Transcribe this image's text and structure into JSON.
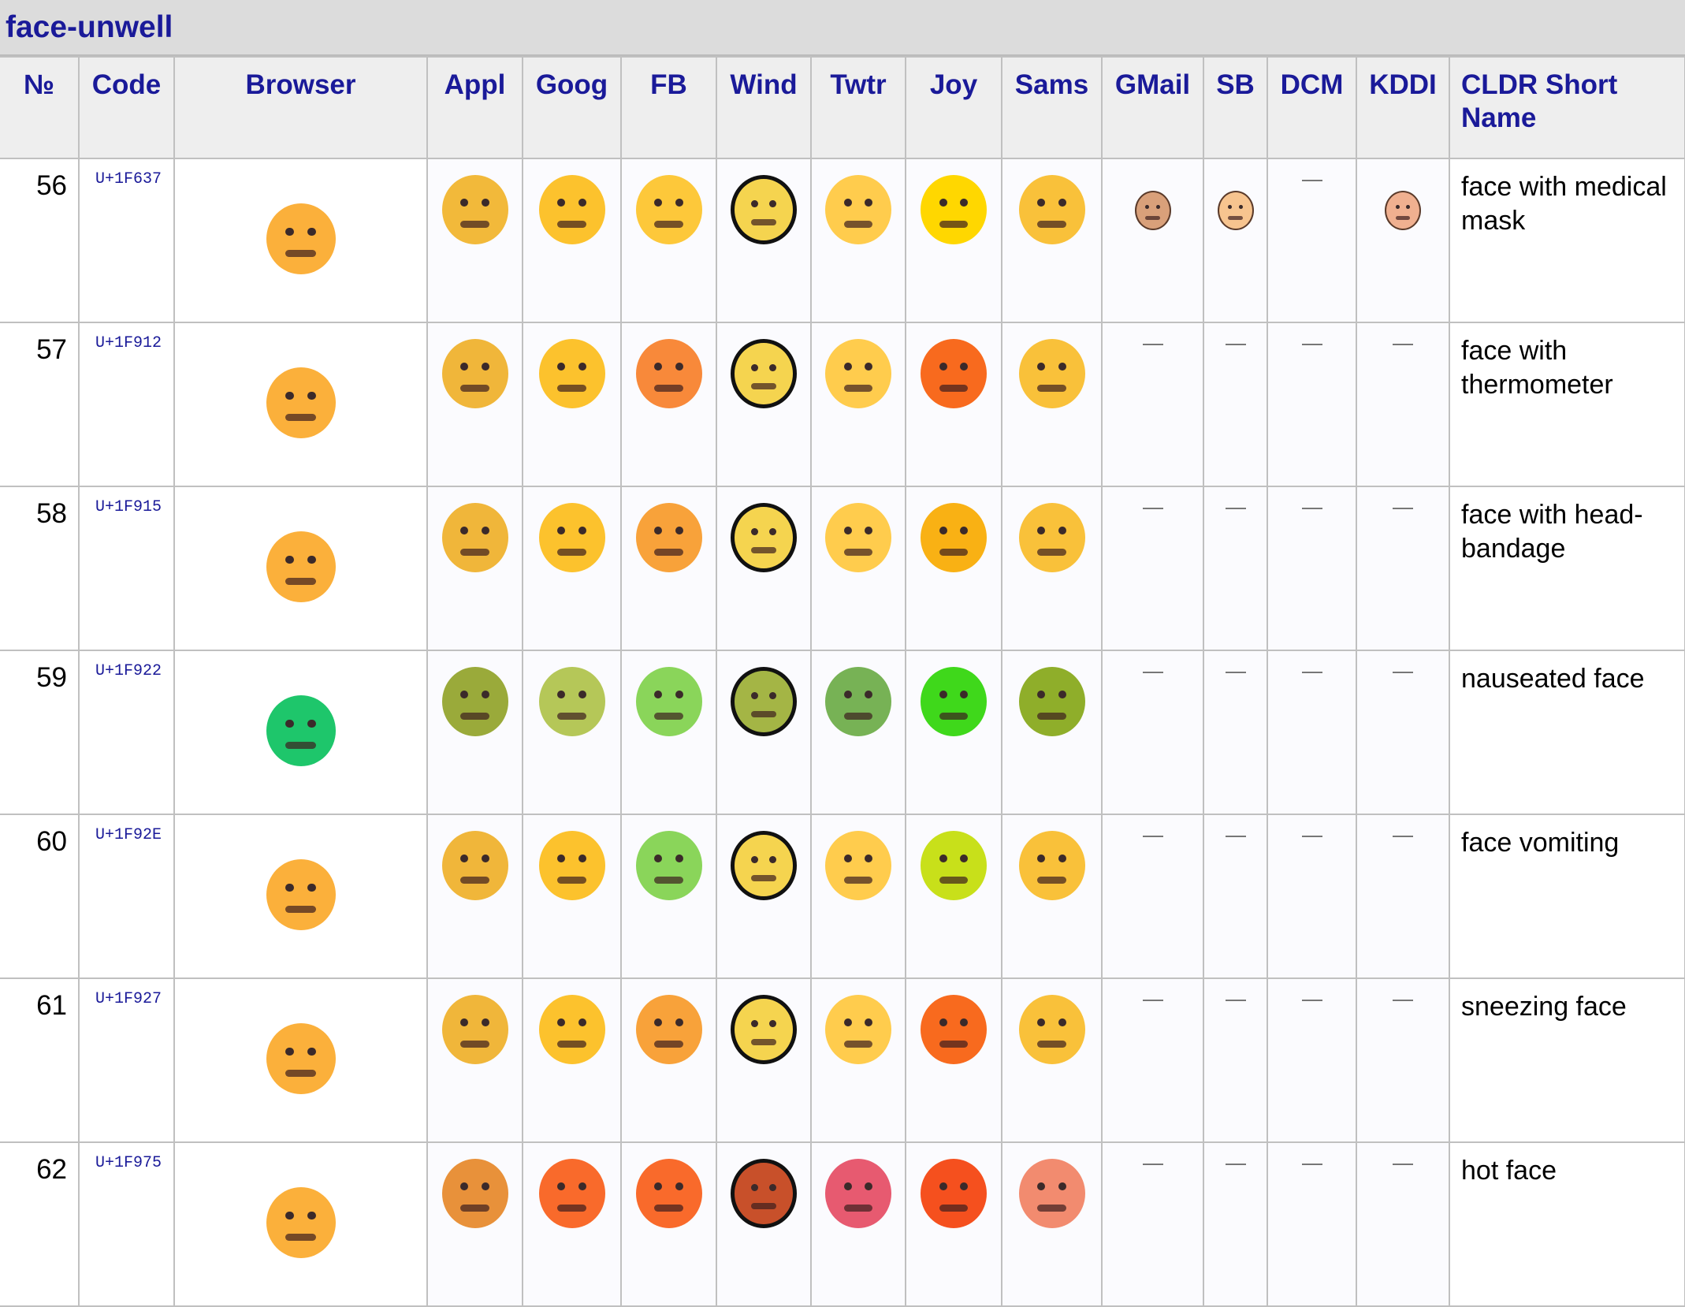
{
  "title": "face-unwell",
  "headers": [
    "№",
    "Code",
    "Browser",
    "Appl",
    "Goog",
    "FB",
    "Wind",
    "Twtr",
    "Joy",
    "Sams",
    "GMail",
    "SB",
    "DCM",
    "KDDI",
    "CLDR Short Name"
  ],
  "dash": "—",
  "rows": [
    {
      "num": "56",
      "code": "U+1F637",
      "name": "face with medical mask",
      "icon": "face-with-medical-mask-icon",
      "faces": [
        "#fbb03b",
        "#f2b93a",
        "#fcc22d",
        "#fdc83a",
        "#f5d44f",
        "#ffcc4d",
        "#ffd700",
        "#f9c13a",
        "#d9a07a",
        "#f7c48f",
        null,
        "#f0b090"
      ]
    },
    {
      "num": "57",
      "code": "U+1F912",
      "name": "face with thermometer",
      "icon": "face-with-thermometer-icon",
      "faces": [
        "#fbb03b",
        "#f0b63a",
        "#fcc22d",
        "#f8893a",
        "#f5d44f",
        "#ffcc4d",
        "#f86a1e",
        "#f9c13a",
        null,
        null,
        null,
        null
      ]
    },
    {
      "num": "58",
      "code": "U+1F915",
      "name": "face with head-bandage",
      "icon": "face-with-head-bandage-icon",
      "faces": [
        "#fbb03b",
        "#f0b63a",
        "#fcc22d",
        "#f8a23a",
        "#f5d44f",
        "#ffcc4d",
        "#f9b114",
        "#f9c13a",
        null,
        null,
        null,
        null
      ]
    },
    {
      "num": "59",
      "code": "U+1F922",
      "name": "nauseated face",
      "icon": "nauseated-face-icon",
      "faces": [
        "#1ec66b",
        "#9aaa3a",
        "#b5c758",
        "#8ad55a",
        "#a4b545",
        "#77b255",
        "#3fd81b",
        "#8fae2a",
        null,
        null,
        null,
        null
      ]
    },
    {
      "num": "60",
      "code": "U+1F92E",
      "name": "face vomiting",
      "icon": "face-vomiting-icon",
      "faces": [
        "#fbb03b",
        "#f0b63a",
        "#fcc22d",
        "#8ad55a",
        "#f5d44f",
        "#ffcc4d",
        "#c8e01a",
        "#f9c13a",
        null,
        null,
        null,
        null
      ]
    },
    {
      "num": "61",
      "code": "U+1F927",
      "name": "sneezing face",
      "icon": "sneezing-face-icon",
      "faces": [
        "#fbb03b",
        "#f0b63a",
        "#fcc22d",
        "#f8a23a",
        "#f5d44f",
        "#ffcc4d",
        "#f86a1e",
        "#f9c13a",
        null,
        null,
        null,
        null
      ]
    },
    {
      "num": "62",
      "code": "U+1F975",
      "name": "hot face",
      "icon": "hot-face-icon",
      "faces": [
        "#fbb03b",
        "#e8913a",
        "#f96a2b",
        "#f96a2b",
        "#c8502a",
        "#e75a70",
        "#f5501e",
        "#f28b6f",
        null,
        null,
        null,
        null
      ]
    }
  ],
  "colors": {
    "link": "#1a1a99",
    "header_bg": "#eeeeee",
    "title_bg": "#dcdcdc",
    "border": "#c0c0c0"
  }
}
